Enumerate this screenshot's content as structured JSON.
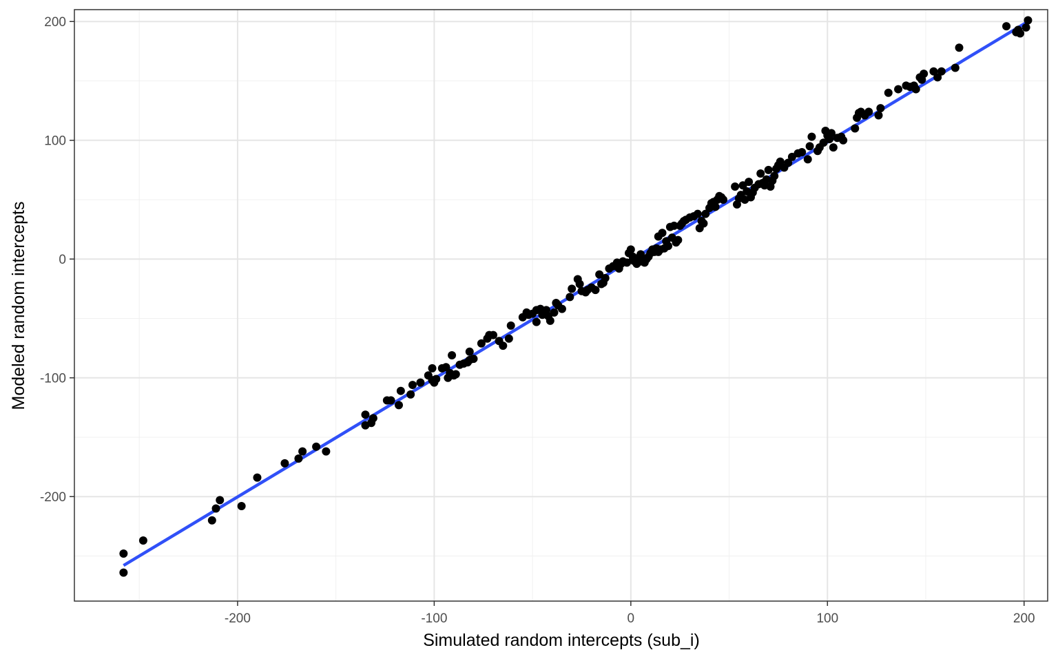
{
  "chart_data": {
    "type": "scatter",
    "title": "",
    "xlabel": "Simulated random intercepts (sub_i)",
    "ylabel": "Modeled random intercepts",
    "xlim": [
      -283,
      212
    ],
    "ylim": [
      -288,
      210
    ],
    "x_ticks": [
      -200,
      -100,
      0,
      100,
      200
    ],
    "x_tick_labels": [
      "-200",
      "-100",
      "0",
      "100",
      "200"
    ],
    "y_ticks": [
      -200,
      -100,
      0,
      100,
      200
    ],
    "y_tick_labels": [
      "-200",
      "-100",
      "0",
      "100",
      "200"
    ],
    "grid": true,
    "legend": "none",
    "colors": {
      "points": "#000000",
      "fit_line": "#3050F8",
      "panel_border": "#333333"
    },
    "fit_line": {
      "x": [
        -258,
        202
      ],
      "y": [
        -258,
        200
      ]
    },
    "series": [
      {
        "points": [
          [
            -258,
            -248
          ],
          [
            -258,
            -264
          ],
          [
            -248,
            -237
          ],
          [
            -213,
            -220
          ],
          [
            -211,
            -210
          ],
          [
            -209,
            -203
          ],
          [
            -198,
            -208
          ],
          [
            -190,
            -184
          ],
          [
            -176,
            -172
          ],
          [
            -169,
            -168
          ],
          [
            -167,
            -162
          ],
          [
            -160,
            -158
          ],
          [
            -155,
            -162
          ],
          [
            -135,
            -140
          ],
          [
            -135,
            -131
          ],
          [
            -132,
            -138
          ],
          [
            -131,
            -134
          ],
          [
            -124,
            -119
          ],
          [
            -122,
            -119
          ],
          [
            -118,
            -123
          ],
          [
            -117,
            -111
          ],
          [
            -112,
            -114
          ],
          [
            -111,
            -106
          ],
          [
            -107,
            -104
          ],
          [
            -103,
            -98
          ],
          [
            -101,
            -92
          ],
          [
            -101,
            -102
          ],
          [
            -100,
            -104
          ],
          [
            -99,
            -101
          ],
          [
            -96,
            -92
          ],
          [
            -94,
            -91
          ],
          [
            -93,
            -100
          ],
          [
            -92,
            -96
          ],
          [
            -91,
            -81
          ],
          [
            -90,
            -98
          ],
          [
            -89,
            -97
          ],
          [
            -87,
            -89
          ],
          [
            -85,
            -88
          ],
          [
            -83,
            -87
          ],
          [
            -82,
            -85
          ],
          [
            -82,
            -78
          ],
          [
            -80,
            -84
          ],
          [
            -76,
            -71
          ],
          [
            -73,
            -67
          ],
          [
            -72,
            -64
          ],
          [
            -70,
            -64
          ],
          [
            -67,
            -69
          ],
          [
            -65,
            -73
          ],
          [
            -62,
            -67
          ],
          [
            -61,
            -56
          ],
          [
            -55,
            -49
          ],
          [
            -53,
            -45
          ],
          [
            -52,
            -47
          ],
          [
            -50,
            -46
          ],
          [
            -48,
            -43
          ],
          [
            -48,
            -53
          ],
          [
            -46,
            -42
          ],
          [
            -45,
            -47
          ],
          [
            -44,
            -44
          ],
          [
            -43,
            -43
          ],
          [
            -42,
            -48
          ],
          [
            -41,
            -52
          ],
          [
            -39,
            -45
          ],
          [
            -38,
            -37
          ],
          [
            -37,
            -39
          ],
          [
            -35,
            -42
          ],
          [
            -31,
            -32
          ],
          [
            -30,
            -25
          ],
          [
            -27,
            -17
          ],
          [
            -26,
            -21
          ],
          [
            -25,
            -27
          ],
          [
            -23,
            -28
          ],
          [
            -22,
            -26
          ],
          [
            -20,
            -24
          ],
          [
            -18,
            -26
          ],
          [
            -16,
            -13
          ],
          [
            -15,
            -21
          ],
          [
            -14,
            -20
          ],
          [
            -13,
            -16
          ],
          [
            -11,
            -8
          ],
          [
            -9,
            -6
          ],
          [
            -7,
            -3
          ],
          [
            -6,
            -8
          ],
          [
            -5,
            -4
          ],
          [
            -4,
            -2
          ],
          [
            -2,
            -3
          ],
          [
            -1,
            5
          ],
          [
            0,
            8
          ],
          [
            1,
            2
          ],
          [
            1,
            -1
          ],
          [
            2,
            -2
          ],
          [
            3,
            0
          ],
          [
            3,
            -4
          ],
          [
            4,
            1
          ],
          [
            5,
            4
          ],
          [
            5,
            -2
          ],
          [
            6,
            0
          ],
          [
            7,
            -3
          ],
          [
            8,
            0
          ],
          [
            9,
            2
          ],
          [
            10,
            5
          ],
          [
            11,
            8
          ],
          [
            12,
            6
          ],
          [
            13,
            9
          ],
          [
            14,
            6
          ],
          [
            14,
            19
          ],
          [
            15,
            8
          ],
          [
            16,
            22
          ],
          [
            17,
            9
          ],
          [
            18,
            15
          ],
          [
            19,
            11
          ],
          [
            20,
            27
          ],
          [
            21,
            18
          ],
          [
            22,
            28
          ],
          [
            23,
            14
          ],
          [
            24,
            16
          ],
          [
            25,
            28
          ],
          [
            26,
            30
          ],
          [
            27,
            32
          ],
          [
            28,
            33
          ],
          [
            30,
            35
          ],
          [
            32,
            36
          ],
          [
            34,
            38
          ],
          [
            35,
            26
          ],
          [
            36,
            32
          ],
          [
            37,
            30
          ],
          [
            38,
            38
          ],
          [
            40,
            43
          ],
          [
            41,
            47
          ],
          [
            42,
            48
          ],
          [
            43,
            44
          ],
          [
            44,
            50
          ],
          [
            45,
            53
          ],
          [
            46,
            52
          ],
          [
            47,
            50
          ],
          [
            53,
            61
          ],
          [
            54,
            46
          ],
          [
            55,
            51
          ],
          [
            56,
            54
          ],
          [
            57,
            62
          ],
          [
            58,
            50
          ],
          [
            59,
            57
          ],
          [
            60,
            65
          ],
          [
            61,
            52
          ],
          [
            62,
            56
          ],
          [
            63,
            60
          ],
          [
            65,
            63
          ],
          [
            66,
            72
          ],
          [
            67,
            64
          ],
          [
            68,
            62
          ],
          [
            69,
            67
          ],
          [
            70,
            75
          ],
          [
            71,
            61
          ],
          [
            72,
            66
          ],
          [
            73,
            70
          ],
          [
            74,
            76
          ],
          [
            75,
            79
          ],
          [
            76,
            82
          ],
          [
            78,
            77
          ],
          [
            80,
            81
          ],
          [
            82,
            86
          ],
          [
            85,
            89
          ],
          [
            87,
            90
          ],
          [
            90,
            84
          ],
          [
            91,
            95
          ],
          [
            92,
            103
          ],
          [
            95,
            91
          ],
          [
            96,
            94
          ],
          [
            98,
            98
          ],
          [
            99,
            108
          ],
          [
            100,
            104
          ],
          [
            101,
            101
          ],
          [
            102,
            106
          ],
          [
            103,
            94
          ],
          [
            105,
            102
          ],
          [
            107,
            103
          ],
          [
            108,
            100
          ],
          [
            114,
            110
          ],
          [
            115,
            119
          ],
          [
            116,
            123
          ],
          [
            117,
            124
          ],
          [
            119,
            121
          ],
          [
            121,
            124
          ],
          [
            126,
            121
          ],
          [
            127,
            127
          ],
          [
            131,
            140
          ],
          [
            136,
            143
          ],
          [
            140,
            146
          ],
          [
            142,
            145
          ],
          [
            144,
            146
          ],
          [
            145,
            143
          ],
          [
            147,
            153
          ],
          [
            148,
            151
          ],
          [
            149,
            156
          ],
          [
            154,
            158
          ],
          [
            156,
            153
          ],
          [
            158,
            158
          ],
          [
            165,
            161
          ],
          [
            167,
            178
          ],
          [
            191,
            196
          ],
          [
            196,
            191
          ],
          [
            197,
            193
          ],
          [
            198,
            190
          ],
          [
            201,
            195
          ],
          [
            202,
            201
          ]
        ]
      }
    ]
  }
}
